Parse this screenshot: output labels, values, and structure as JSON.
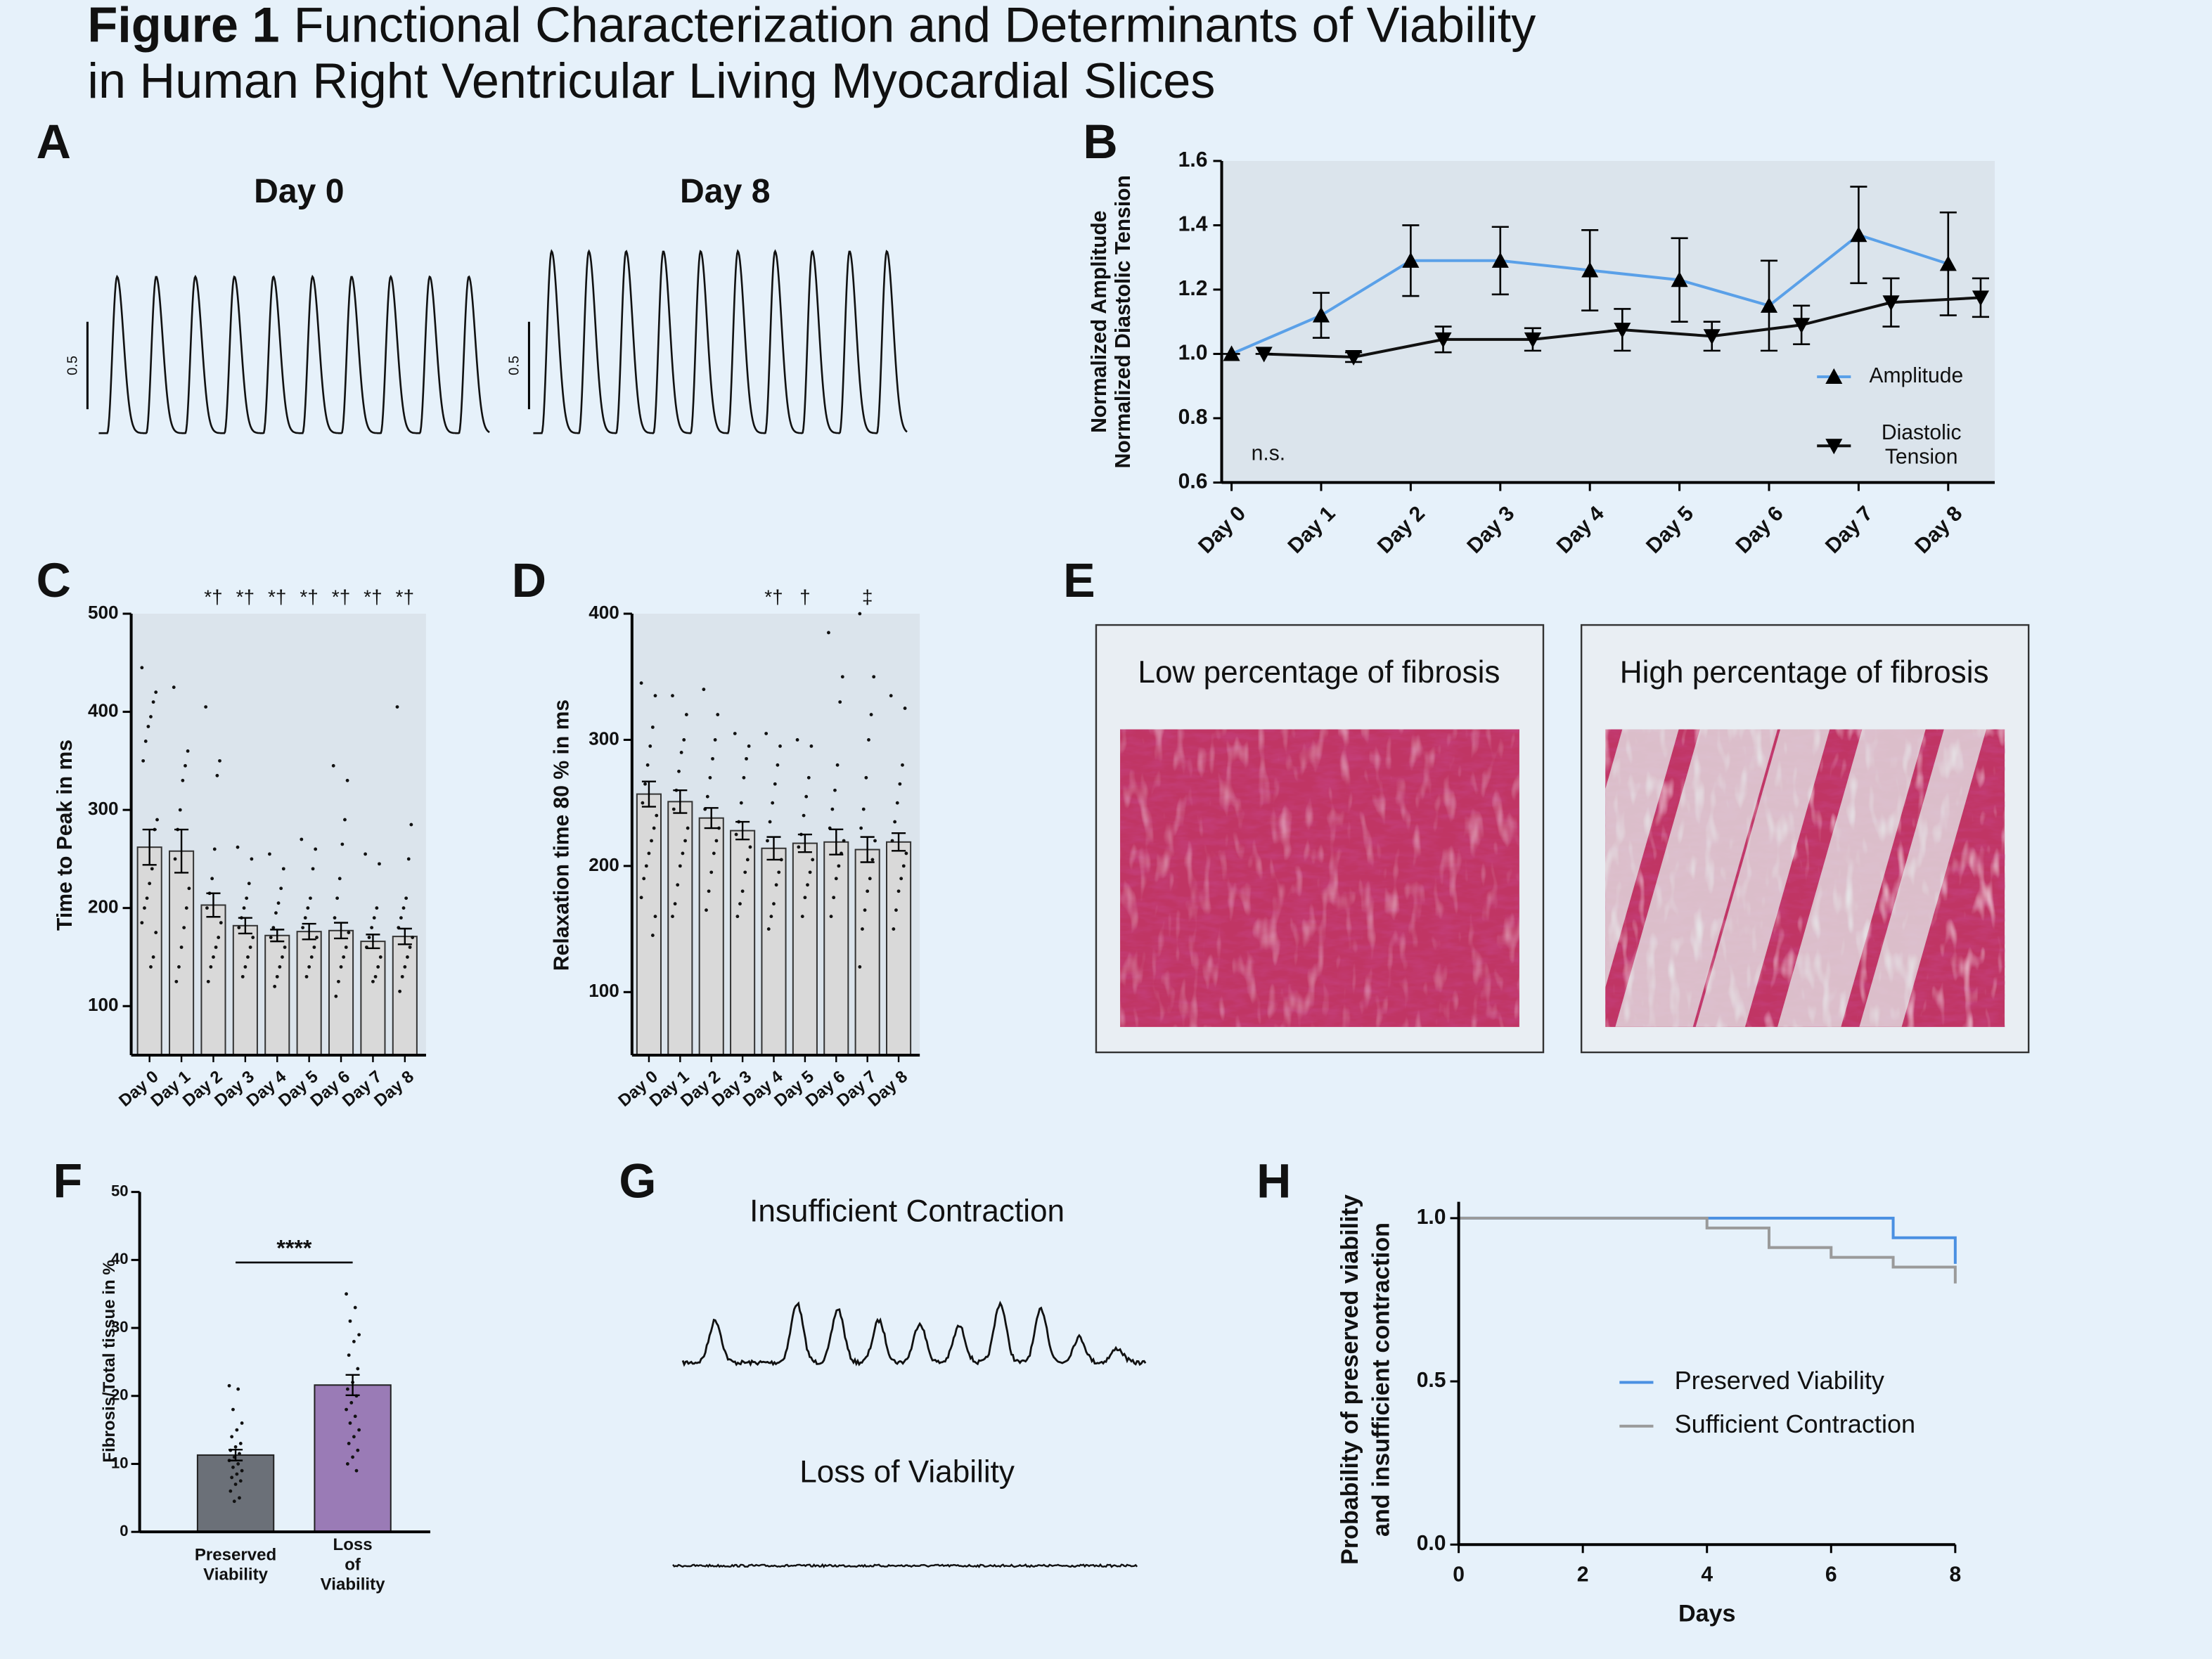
{
  "figure": {
    "label": "Figure 1",
    "title_lines": [
      "Functional Characterization and Determinants of Viability",
      "in Human Right Ventricular Living Myocardial Slices"
    ]
  },
  "chart_data": [
    {
      "panel": "A",
      "type": "trace",
      "traces": [
        {
          "title": "Day 0",
          "scale_label": "0.5"
        },
        {
          "title": "Day 8",
          "scale_label": "0.5"
        }
      ]
    },
    {
      "panel": "B",
      "type": "line",
      "categories": [
        "Day 0",
        "Day 1",
        "Day 2",
        "Day 3",
        "Day 4",
        "Day 5",
        "Day 6",
        "Day 7",
        "Day 8"
      ],
      "series": [
        {
          "name": "Amplitude",
          "color": "#5aa0e8",
          "marker": "triangle-up",
          "values": [
            1.0,
            1.12,
            1.29,
            1.29,
            1.26,
            1.23,
            1.15,
            1.37,
            1.28
          ],
          "errors": [
            0,
            0.07,
            0.11,
            0.105,
            0.125,
            0.13,
            0.14,
            0.15,
            0.16
          ]
        },
        {
          "name": "Diastolic Tension",
          "color": "#111111",
          "marker": "triangle-down",
          "values": [
            1.0,
            0.99,
            1.045,
            1.045,
            1.075,
            1.055,
            1.09,
            1.16,
            1.175
          ],
          "errors": [
            0,
            0.015,
            0.04,
            0.035,
            0.065,
            0.045,
            0.06,
            0.075,
            0.06
          ]
        }
      ],
      "marker_color": "#000000",
      "ylim": [
        0.6,
        1.6
      ],
      "yticks": [
        0.6,
        0.8,
        {
          "value": 1,
          "label": "1.0"
        },
        1.2,
        1.4,
        1.6
      ],
      "ylabel": [
        "Normalized Amplitude",
        "Normalized Diastolic Tension"
      ],
      "annotation": "n.s.",
      "legend": "lower right"
    },
    {
      "panel": "C",
      "type": "bar",
      "categories": [
        "Day 0",
        "Day 1",
        "Day 2",
        "Day 3",
        "Day 4",
        "Day 5",
        "Day 6",
        "Day 7",
        "Day 8"
      ],
      "values": [
        262,
        258,
        203,
        182,
        172,
        176,
        177,
        166,
        171
      ],
      "errors": [
        18,
        22,
        12,
        8,
        6,
        8,
        8,
        7,
        8
      ],
      "points": [
        [
          445,
          420,
          410,
          395,
          385,
          370,
          350,
          290,
          280,
          240,
          225,
          210,
          200,
          185,
          175,
          150,
          140
        ],
        [
          425,
          360,
          345,
          330,
          300,
          280,
          250,
          220,
          200,
          180,
          160,
          140,
          125
        ],
        [
          405,
          350,
          335,
          260,
          230,
          215,
          200,
          185,
          170,
          160,
          150,
          140,
          125
        ],
        [
          262,
          250,
          225,
          210,
          200,
          190,
          180,
          170,
          160,
          150,
          140,
          130
        ],
        [
          255,
          240,
          220,
          205,
          195,
          180,
          170,
          160,
          150,
          140,
          130,
          120
        ],
        [
          270,
          260,
          240,
          210,
          200,
          190,
          180,
          170,
          160,
          150,
          140,
          130
        ],
        [
          345,
          330,
          290,
          265,
          230,
          210,
          190,
          175,
          160,
          150,
          140,
          125,
          110
        ],
        [
          255,
          245,
          200,
          190,
          180,
          170,
          160,
          150,
          140,
          130,
          125
        ],
        [
          405,
          285,
          250,
          210,
          200,
          190,
          180,
          170,
          160,
          150,
          140,
          130,
          115
        ]
      ],
      "annotations": [
        null,
        null,
        "*†",
        "*†",
        "*†",
        "*†",
        "*†",
        "*†",
        "*†"
      ],
      "color": "#d9d9d9",
      "ylim": [
        50,
        500
      ],
      "yticks": [
        100,
        200,
        300,
        400,
        500
      ],
      "ylabel": "Time to Peak in ms"
    },
    {
      "panel": "D",
      "type": "bar",
      "categories": [
        "Day 0",
        "Day 1",
        "Day 2",
        "Day 3",
        "Day 4",
        "Day 5",
        "Day 6",
        "Day 7",
        "Day 8"
      ],
      "values": [
        257,
        251,
        238,
        228,
        214,
        218,
        219,
        213,
        219
      ],
      "errors": [
        10,
        9,
        8,
        7,
        9,
        7,
        10,
        10,
        7
      ],
      "points": [
        [
          345,
          335,
          310,
          295,
          280,
          265,
          250,
          240,
          230,
          220,
          210,
          200,
          190,
          175,
          160,
          145
        ],
        [
          335,
          320,
          300,
          290,
          275,
          260,
          245,
          230,
          220,
          210,
          200,
          185,
          170,
          160
        ],
        [
          340,
          320,
          300,
          285,
          270,
          255,
          245,
          230,
          220,
          210,
          195,
          180,
          165
        ],
        [
          305,
          295,
          285,
          270,
          250,
          235,
          225,
          215,
          205,
          195,
          180,
          170,
          160
        ],
        [
          305,
          295,
          280,
          265,
          250,
          235,
          220,
          205,
          195,
          185,
          170,
          160,
          150
        ],
        [
          300,
          295,
          270,
          255,
          240,
          225,
          215,
          205,
          195,
          185,
          175,
          160
        ],
        [
          385,
          350,
          330,
          280,
          260,
          245,
          230,
          220,
          210,
          200,
          190,
          175,
          160
        ],
        [
          400,
          350,
          320,
          300,
          270,
          245,
          230,
          220,
          205,
          190,
          180,
          165,
          150,
          120
        ],
        [
          335,
          325,
          280,
          265,
          250,
          235,
          220,
          210,
          200,
          190,
          180,
          165,
          150
        ]
      ],
      "annotations": [
        null,
        null,
        null,
        null,
        "*†",
        "†",
        null,
        "‡",
        null
      ],
      "color": "#d9d9d9",
      "ylim": [
        50,
        400
      ],
      "yticks": [
        100,
        200,
        300,
        400
      ],
      "ylabel": "Relaxation time 80 % in ms"
    },
    {
      "panel": "E",
      "type": "image",
      "images": [
        {
          "title": "Low percentage of fibrosis"
        },
        {
          "title": "High percentage of fibrosis"
        }
      ]
    },
    {
      "panel": "F",
      "type": "bar",
      "categories": [
        "Preserved Viability",
        "Loss of Viability"
      ],
      "values": [
        11.3,
        21.6
      ],
      "errors": [
        0.8,
        1.5
      ],
      "points": [
        [
          21.5,
          21,
          18,
          16,
          15,
          14,
          13,
          12.5,
          12,
          11.5,
          11,
          10.5,
          10,
          9.5,
          9,
          8.5,
          8,
          7.5,
          7,
          6,
          5,
          4.5
        ],
        [
          35,
          33,
          31,
          29,
          28,
          26,
          24,
          22,
          21,
          20,
          19,
          18,
          17,
          16,
          15,
          14,
          13,
          12,
          11,
          10,
          9
        ]
      ],
      "colors": [
        "#6b7078",
        "#9a7bb6"
      ],
      "annotation": "****",
      "ylim": [
        0,
        50
      ],
      "yticks": [
        0,
        10,
        20,
        30,
        40,
        50
      ],
      "ylabel": "Fibrosis/Total tissue in %"
    },
    {
      "panel": "G",
      "type": "trace",
      "traces": [
        {
          "title": "Insufficient Contraction"
        },
        {
          "title": "Loss of Viability"
        }
      ]
    },
    {
      "panel": "H",
      "type": "step",
      "x": [
        0,
        4,
        5,
        6,
        7,
        8
      ],
      "series": [
        {
          "name": "Preserved Viability",
          "color": "#4a90e2",
          "values": [
            1,
            1,
            1,
            1,
            0.94,
            0.86
          ]
        },
        {
          "name": "Sufficient Contraction",
          "color": "#9a9a9a",
          "values": [
            1,
            0.97,
            0.91,
            0.88,
            0.85,
            0.8
          ]
        }
      ],
      "xlim": [
        0,
        8
      ],
      "xticks": [
        0,
        2,
        4,
        6,
        8
      ],
      "ylim": [
        0,
        1.05
      ],
      "yticks": [
        {
          "value": 0,
          "label": "0.0"
        },
        0.5,
        {
          "value": 1,
          "label": "1.0"
        }
      ],
      "xlabel": "Days",
      "ylabel": [
        "Probability of preserved viability",
        "and insufficient contraction"
      ],
      "legend": "center right"
    }
  ]
}
